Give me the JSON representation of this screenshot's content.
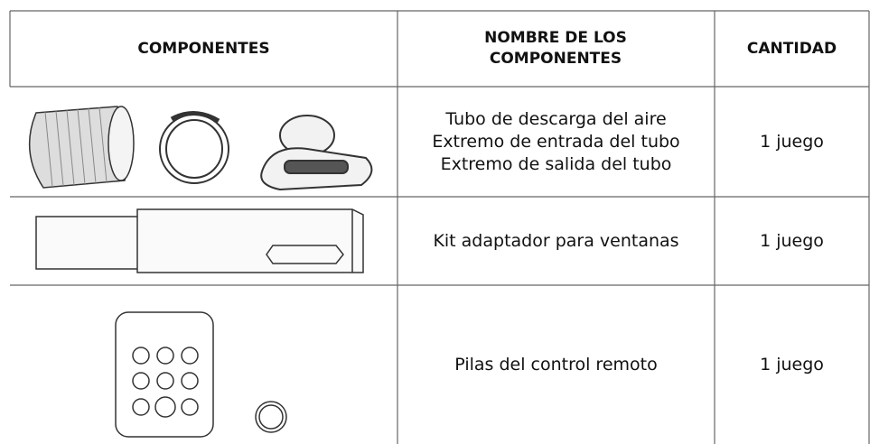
{
  "table": {
    "headers": [
      "COMPONENTES",
      "NOMBRE DE LOS COMPONENTES",
      "CANTIDAD"
    ],
    "rows": [
      {
        "names": [
          "Tubo de descarga del aire",
          "Extremo de entrada del tubo",
          "Extremo de salida del tubo"
        ],
        "quantity": "1 juego"
      },
      {
        "names": [
          "Kit adaptador para ventanas"
        ],
        "quantity": "1 juego"
      },
      {
        "names": [
          "Pilas del control remoto"
        ],
        "quantity": "1 juego"
      }
    ]
  }
}
